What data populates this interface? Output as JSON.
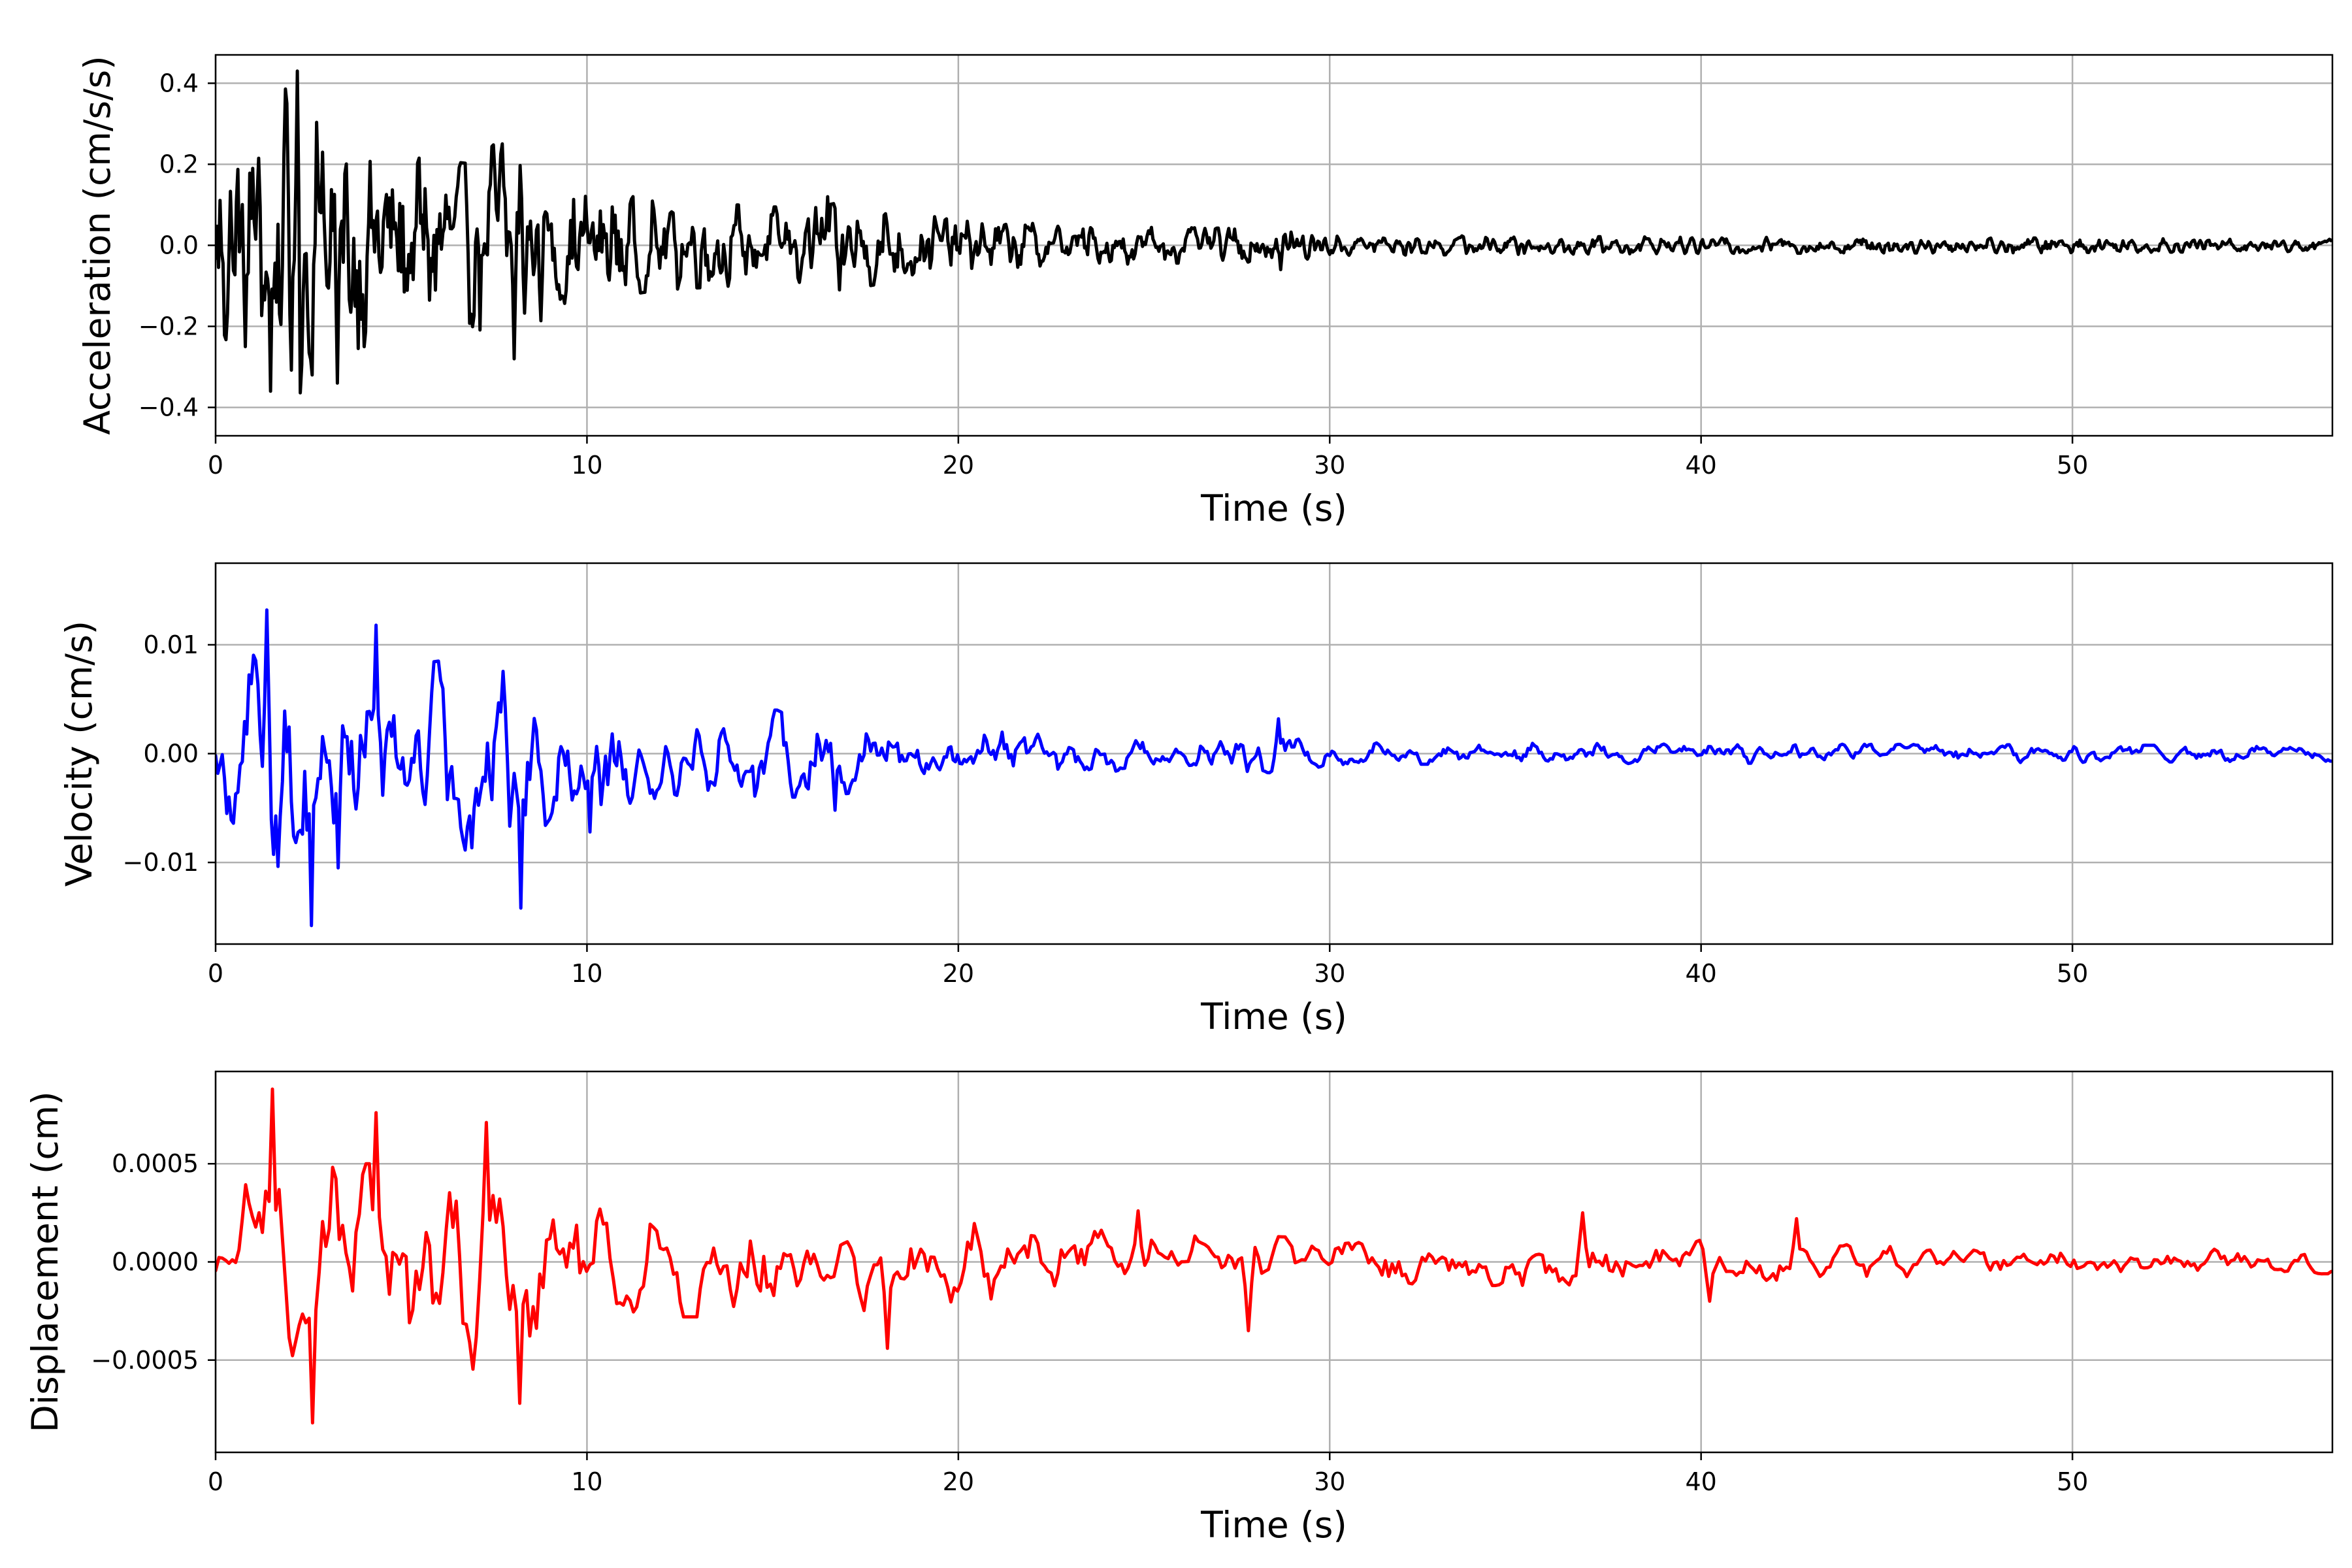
{
  "chart_data": [
    {
      "type": "line",
      "xlabel": "Time (s)",
      "ylabel": "Acceleration (cm/s/s)",
      "color": "#000000",
      "xlim": [
        0,
        57
      ],
      "ylim": [
        -0.47,
        0.47
      ],
      "xticks": [
        0,
        10,
        20,
        30,
        40,
        50
      ],
      "yticks": [
        {
          "value": 0.4,
          "label": "0.4"
        },
        {
          "value": 0.2,
          "label": "0.2"
        },
        {
          "value": 0.0,
          "label": "0.0"
        },
        {
          "value": -0.2,
          "label": "−0.2"
        },
        {
          "value": -0.4,
          "label": "−0.4"
        }
      ],
      "grid": true,
      "series": [
        {
          "envelope": [
            [
              0,
              0.25
            ],
            [
              1,
              0.28
            ],
            [
              2,
              0.4
            ],
            [
              3,
              0.28
            ],
            [
              5,
              0.22
            ],
            [
              7,
              0.2
            ],
            [
              8,
              0.3
            ],
            [
              9,
              0.15
            ],
            [
              12,
              0.11
            ],
            [
              16,
              0.09
            ],
            [
              17,
              0.11
            ],
            [
              20,
              0.06
            ],
            [
              25,
              0.045
            ],
            [
              29,
              0.04
            ],
            [
              30,
              0.025
            ],
            [
              40,
              0.02
            ],
            [
              50,
              0.018
            ],
            [
              57,
              0.015
            ]
          ],
          "peaks": [
            [
              0.8,
              -0.25
            ],
            [
              1.5,
              -0.36
            ],
            [
              2.2,
              0.43
            ],
            [
              3.3,
              -0.34
            ],
            [
              8.1,
              0.27
            ],
            [
              8.05,
              -0.28
            ],
            [
              2.9,
              0.23
            ],
            [
              1.0,
              0.19
            ],
            [
              16.8,
              -0.11
            ],
            [
              16.5,
              0.12
            ],
            [
              28.7,
              -0.06
            ]
          ]
        }
      ]
    },
    {
      "type": "line",
      "xlabel": "Time (s)",
      "ylabel": "Velocity (cm/s)",
      "color": "#0000ff",
      "xlim": [
        0,
        57
      ],
      "ylim": [
        -0.0175,
        0.0175
      ],
      "xticks": [
        0,
        10,
        20,
        30,
        40,
        50
      ],
      "yticks": [
        {
          "value": 0.01,
          "label": "0.01"
        },
        {
          "value": 0.0,
          "label": "0.00"
        },
        {
          "value": -0.01,
          "label": "−0.01"
        }
      ],
      "grid": true,
      "series": [
        {
          "envelope": [
            [
              0,
              0.004
            ],
            [
              1,
              0.009
            ],
            [
              2,
              0.011
            ],
            [
              3,
              0.009
            ],
            [
              5,
              0.008
            ],
            [
              7,
              0.009
            ],
            [
              8,
              0.011
            ],
            [
              9,
              0.006
            ],
            [
              12,
              0.004
            ],
            [
              16,
              0.004
            ],
            [
              19,
              0.003
            ],
            [
              20,
              0.0022
            ],
            [
              25,
              0.0015
            ],
            [
              29,
              0.0018
            ],
            [
              30,
              0.001
            ],
            [
              40,
              0.0009
            ],
            [
              50,
              0.0008
            ],
            [
              57,
              0.0007
            ]
          ],
          "peaks": [
            [
              1.4,
              0.0132
            ],
            [
              2.6,
              -0.0158
            ],
            [
              8.2,
              -0.0142
            ],
            [
              3.3,
              -0.0105
            ],
            [
              4.3,
              0.0118
            ],
            [
              10.1,
              -0.0072
            ],
            [
              28.6,
              0.0032
            ],
            [
              16.7,
              -0.0052
            ]
          ]
        }
      ]
    },
    {
      "type": "line",
      "xlabel": "Time (s)",
      "ylabel": "Displacement (cm)",
      "color": "#ff0000",
      "xlim": [
        0,
        57
      ],
      "ylim": [
        -0.00097,
        0.00097
      ],
      "xticks": [
        0,
        10,
        20,
        30,
        40,
        50
      ],
      "yticks": [
        {
          "value": 0.0005,
          "label": "0.0005"
        },
        {
          "value": 0.0,
          "label": "0.0000"
        },
        {
          "value": -0.0005,
          "label": "−0.0005"
        }
      ],
      "grid": true,
      "series": [
        {
          "envelope": [
            [
              0,
              0.00015
            ],
            [
              1,
              0.00045
            ],
            [
              2,
              0.0005
            ],
            [
              4,
              0.0005
            ],
            [
              6,
              0.0005
            ],
            [
              8,
              0.0006
            ],
            [
              9,
              0.00035
            ],
            [
              12,
              0.00028
            ],
            [
              16,
              0.00028
            ],
            [
              20,
              0.0002
            ],
            [
              25,
              0.00015
            ],
            [
              30,
              0.00012
            ],
            [
              35,
              0.00012
            ],
            [
              40,
              0.00011
            ],
            [
              45,
              0.0001
            ],
            [
              50,
              7e-05
            ],
            [
              57,
              6e-05
            ]
          ],
          "peaks": [
            [
              1.5,
              0.00088
            ],
            [
              2.6,
              -0.00082
            ],
            [
              4.3,
              0.00076
            ],
            [
              8.2,
              -0.00072
            ],
            [
              7.3,
              0.00071
            ],
            [
              18.1,
              -0.00044
            ],
            [
              27.8,
              -0.00035
            ],
            [
              24.8,
              0.00026
            ],
            [
              36.8,
              0.00025
            ],
            [
              40.2,
              -0.0002
            ],
            [
              42.6,
              0.00022
            ]
          ]
        }
      ]
    }
  ]
}
